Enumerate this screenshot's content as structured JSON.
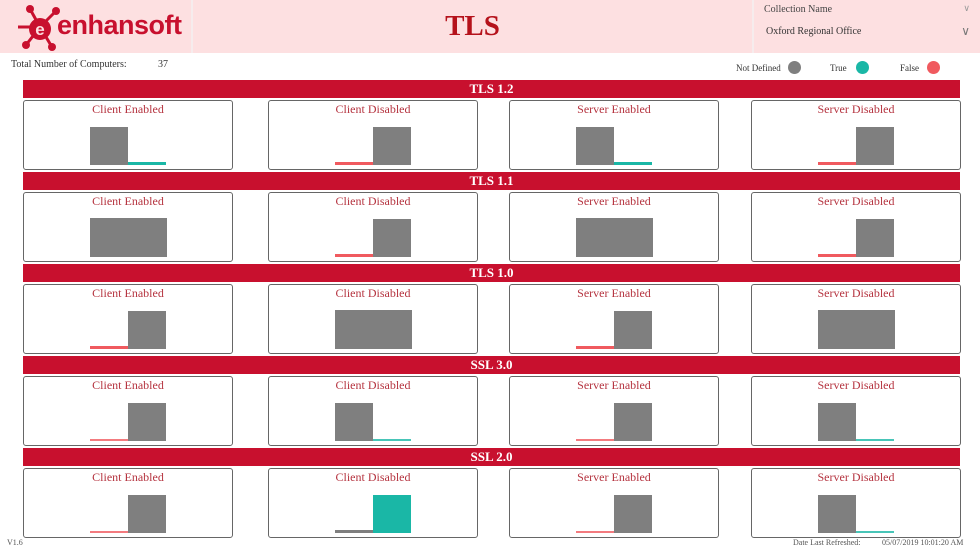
{
  "header": {
    "logo_text": "enhansoft",
    "title": "TLS",
    "slicer": {
      "label": "Collection Name",
      "selected": "Oxford Regional Office"
    }
  },
  "summary": {
    "total_label": "Total Number of Computers:",
    "total_value": "37"
  },
  "legend": [
    {
      "label": "Not Defined",
      "color": "#7f7f7f"
    },
    {
      "label": "True",
      "color": "#1ab7a6"
    },
    {
      "label": "False",
      "color": "#f05a5f"
    }
  ],
  "colors": {
    "brand_red": "#c8102e",
    "header_bg": "#fde0e1",
    "not_defined": "#7f7f7f",
    "true": "#1ab7a6",
    "false": "#f05a5f"
  },
  "sections": [
    {
      "label": "TLS 1.2",
      "cards": [
        {
          "title": "Client Enabled"
        },
        {
          "title": "Client Disabled"
        },
        {
          "title": "Server Enabled"
        },
        {
          "title": "Server Disabled"
        }
      ]
    },
    {
      "label": "TLS 1.1",
      "cards": [
        {
          "title": "Client Enabled"
        },
        {
          "title": "Client Disabled"
        },
        {
          "title": "Server Enabled"
        },
        {
          "title": "Server Disabled"
        }
      ]
    },
    {
      "label": "TLS 1.0",
      "cards": [
        {
          "title": "Client Enabled"
        },
        {
          "title": "Client Disabled"
        },
        {
          "title": "Server Enabled"
        },
        {
          "title": "Server Disabled"
        }
      ]
    },
    {
      "label": "SSL 3.0",
      "cards": [
        {
          "title": "Client Enabled"
        },
        {
          "title": "Client Disabled"
        },
        {
          "title": "Server Enabled"
        },
        {
          "title": "Server Disabled"
        }
      ]
    },
    {
      "label": "SSL 2.0",
      "cards": [
        {
          "title": "Client Enabled"
        },
        {
          "title": "Client Disabled"
        },
        {
          "title": "Server Enabled"
        },
        {
          "title": "Server Disabled"
        }
      ]
    }
  ],
  "chart_data": [
    {
      "type": "bar",
      "title": "TLS 1.2 - Client Enabled",
      "categories": [
        "Not Defined",
        "True"
      ],
      "values": [
        36,
        1
      ],
      "ylim": [
        0,
        37
      ]
    },
    {
      "type": "bar",
      "title": "TLS 1.2 - Client Disabled",
      "categories": [
        "False",
        "Not Defined"
      ],
      "values": [
        1,
        36
      ],
      "ylim": [
        0,
        37
      ]
    },
    {
      "type": "bar",
      "title": "TLS 1.2 - Server Enabled",
      "categories": [
        "Not Defined",
        "True"
      ],
      "values": [
        36,
        1
      ],
      "ylim": [
        0,
        37
      ]
    },
    {
      "type": "bar",
      "title": "TLS 1.2 - Server Disabled",
      "categories": [
        "False",
        "Not Defined"
      ],
      "values": [
        1,
        36
      ],
      "ylim": [
        0,
        37
      ]
    },
    {
      "type": "bar",
      "title": "TLS 1.1 - Client Enabled",
      "categories": [
        "Not Defined"
      ],
      "values": [
        37
      ],
      "ylim": [
        0,
        37
      ]
    },
    {
      "type": "bar",
      "title": "TLS 1.1 - Client Disabled",
      "categories": [
        "False",
        "Not Defined"
      ],
      "values": [
        1,
        36
      ],
      "ylim": [
        0,
        37
      ]
    },
    {
      "type": "bar",
      "title": "TLS 1.1 - Server Enabled",
      "categories": [
        "Not Defined"
      ],
      "values": [
        37
      ],
      "ylim": [
        0,
        37
      ]
    },
    {
      "type": "bar",
      "title": "TLS 1.1 - Server Disabled",
      "categories": [
        "False",
        "Not Defined"
      ],
      "values": [
        1,
        36
      ],
      "ylim": [
        0,
        37
      ]
    },
    {
      "type": "bar",
      "title": "TLS 1.0 - Client Enabled",
      "categories": [
        "False",
        "Not Defined"
      ],
      "values": [
        1,
        36
      ],
      "ylim": [
        0,
        37
      ]
    },
    {
      "type": "bar",
      "title": "TLS 1.0 - Client Disabled",
      "categories": [
        "Not Defined"
      ],
      "values": [
        37
      ],
      "ylim": [
        0,
        37
      ]
    },
    {
      "type": "bar",
      "title": "TLS 1.0 - Server Enabled",
      "categories": [
        "False",
        "Not Defined"
      ],
      "values": [
        1,
        36
      ],
      "ylim": [
        0,
        37
      ]
    },
    {
      "type": "bar",
      "title": "TLS 1.0 - Server Disabled",
      "categories": [
        "Not Defined"
      ],
      "values": [
        37
      ],
      "ylim": [
        0,
        37
      ]
    },
    {
      "type": "bar",
      "title": "SSL 3.0 - Client Enabled",
      "categories": [
        "False",
        "Not Defined"
      ],
      "values": [
        0.5,
        36.5
      ],
      "ylim": [
        0,
        37
      ]
    },
    {
      "type": "bar",
      "title": "SSL 3.0 - Client Disabled",
      "categories": [
        "Not Defined",
        "True"
      ],
      "values": [
        36.5,
        0.5
      ],
      "ylim": [
        0,
        37
      ]
    },
    {
      "type": "bar",
      "title": "SSL 3.0 - Server Enabled",
      "categories": [
        "False",
        "Not Defined"
      ],
      "values": [
        0.5,
        36.5
      ],
      "ylim": [
        0,
        37
      ]
    },
    {
      "type": "bar",
      "title": "SSL 3.0 - Server Disabled",
      "categories": [
        "Not Defined",
        "True"
      ],
      "values": [
        36.5,
        0.5
      ],
      "ylim": [
        0,
        37
      ]
    },
    {
      "type": "bar",
      "title": "SSL 2.0 - Client Enabled",
      "categories": [
        "False",
        "Not Defined"
      ],
      "values": [
        0.5,
        36.5
      ],
      "ylim": [
        0,
        37
      ]
    },
    {
      "type": "bar",
      "title": "SSL 2.0 - Client Disabled",
      "categories": [
        "Not Defined",
        "True"
      ],
      "values": [
        1,
        36
      ],
      "ylim": [
        0,
        37
      ]
    },
    {
      "type": "bar",
      "title": "SSL 2.0 - Server Enabled",
      "categories": [
        "False",
        "Not Defined"
      ],
      "values": [
        0.5,
        36.5
      ],
      "ylim": [
        0,
        37
      ]
    },
    {
      "type": "bar",
      "title": "SSL 2.0 - Server Disabled",
      "categories": [
        "Not Defined",
        "True"
      ],
      "values": [
        36.5,
        0.5
      ],
      "ylim": [
        0,
        37
      ]
    }
  ],
  "footer": {
    "version": "V1.6",
    "refreshed_label": "Date Last Refreshed:",
    "refreshed_value": "05/07/2019 10:01:20 AM"
  }
}
